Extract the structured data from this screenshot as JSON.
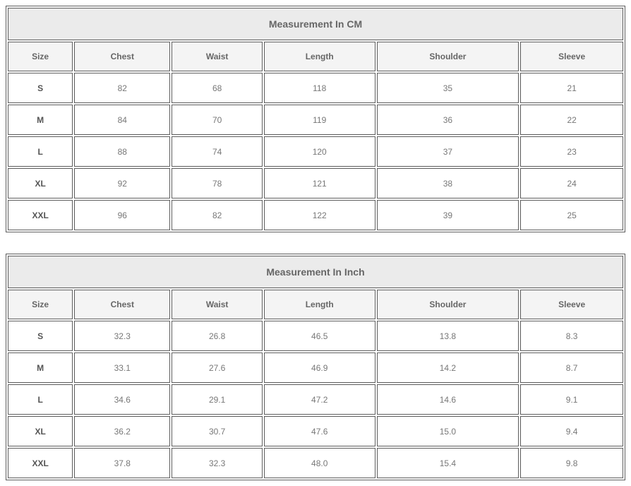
{
  "columns": [
    "Size",
    "Chest",
    "Waist",
    "Length",
    "Shoulder",
    "Sleeve"
  ],
  "tables": [
    {
      "title": "Measurement In CM",
      "rows": [
        [
          "S",
          "82",
          "68",
          "118",
          "35",
          "21"
        ],
        [
          "M",
          "84",
          "70",
          "119",
          "36",
          "22"
        ],
        [
          "L",
          "88",
          "74",
          "120",
          "37",
          "23"
        ],
        [
          "XL",
          "92",
          "78",
          "121",
          "38",
          "24"
        ],
        [
          "XXL",
          "96",
          "82",
          "122",
          "39",
          "25"
        ]
      ]
    },
    {
      "title": "Measurement In Inch",
      "rows": [
        [
          "S",
          "32.3",
          "26.8",
          "46.5",
          "13.8",
          "8.3"
        ],
        [
          "M",
          "33.1",
          "27.6",
          "46.9",
          "14.2",
          "8.7"
        ],
        [
          "L",
          "34.6",
          "29.1",
          "47.2",
          "14.6",
          "9.1"
        ],
        [
          "XL",
          "36.2",
          "30.7",
          "47.6",
          "15.0",
          "9.4"
        ],
        [
          "XXL",
          "37.8",
          "32.3",
          "48.0",
          "15.4",
          "9.8"
        ]
      ]
    }
  ],
  "colors": {
    "border": "#5c5c5c",
    "title_bg": "#ebebeb",
    "header_bg": "#f4f4f4",
    "text": "#777777"
  }
}
